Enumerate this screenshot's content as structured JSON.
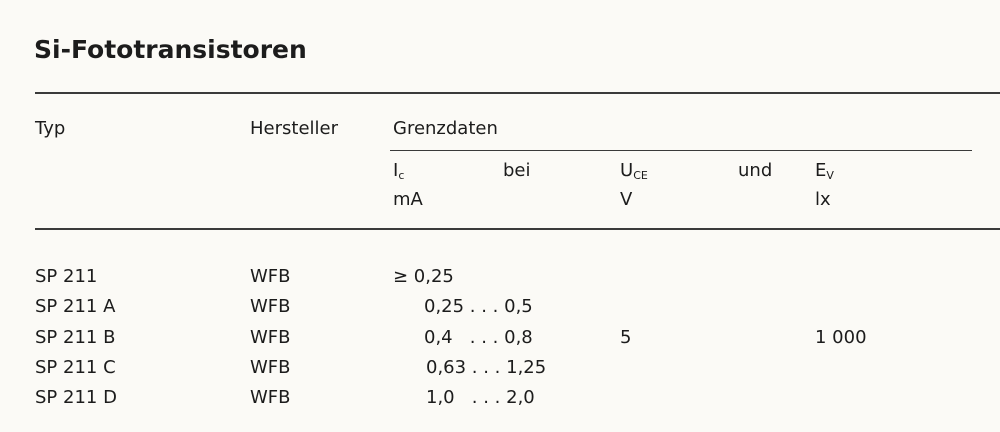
{
  "title": "Si-Fototransistoren",
  "headers": {
    "typ": "Typ",
    "hersteller": "Hersteller",
    "grenzdaten": "Grenzdaten",
    "ic": "I",
    "ic_sub": "c",
    "bei": "bei",
    "uce": "U",
    "uce_sub": "CE",
    "und": "und",
    "ev": "E",
    "ev_sub": "V",
    "ic_unit": "mA",
    "uce_unit": "V",
    "ev_unit": "lx"
  },
  "rows": [
    {
      "typ": "SP 211",
      "hersteller": "WFB",
      "ic": "≥ 0,25"
    },
    {
      "typ": "SP 211 A",
      "hersteller": "WFB",
      "ic": "0,25 . . . 0,5"
    },
    {
      "typ": "SP 211 B",
      "hersteller": "WFB",
      "ic": "0,4   . . . 0,8"
    },
    {
      "typ": "SP 211 C",
      "hersteller": "WFB",
      "ic": "0,63 . . . 1,25"
    },
    {
      "typ": "SP 211 D",
      "hersteller": "WFB",
      "ic": "1,0   . . . 2,0"
    }
  ],
  "uce_value": "5",
  "ev_value": "1 000"
}
